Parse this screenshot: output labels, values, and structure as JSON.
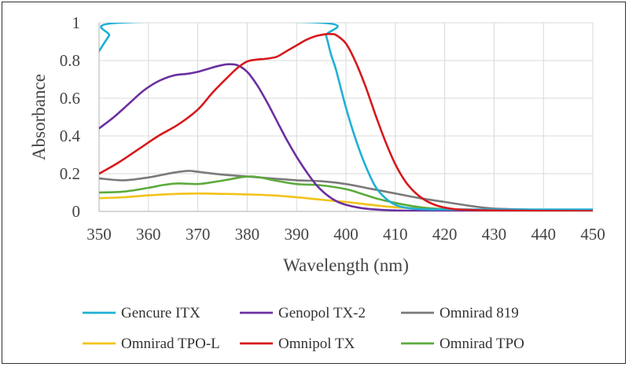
{
  "chart_data": {
    "type": "line",
    "title": "",
    "xlabel": "Wavelength (nm)",
    "ylabel": "Absorbance",
    "xlim": [
      350,
      450
    ],
    "ylim": [
      0,
      1
    ],
    "xticks": [
      350,
      360,
      370,
      380,
      390,
      400,
      410,
      420,
      430,
      440,
      450
    ],
    "yticks": [
      0,
      0.2,
      0.4,
      0.6,
      0.8,
      1
    ],
    "ytick_labels": [
      "0",
      "0.2",
      "0.4",
      "0.6",
      "0.8",
      "1"
    ],
    "grid": true,
    "legend_position": "bottom",
    "series": [
      {
        "name": "Gencure ITX",
        "color": "#1fb0d6",
        "x": [
          350,
          352,
          354,
          395,
          396,
          397,
          398,
          400,
          402,
          404,
          406,
          408,
          410,
          412,
          415,
          420,
          430,
          450
        ],
        "y": [
          0.85,
          0.93,
          1.0,
          1.0,
          0.93,
          0.83,
          0.75,
          0.55,
          0.38,
          0.24,
          0.13,
          0.07,
          0.035,
          0.02,
          0.012,
          0.01,
          0.01,
          0.01
        ]
      },
      {
        "name": "Genopol TX-2",
        "color": "#6b2fa0",
        "x": [
          350,
          353,
          356,
          359,
          362,
          365,
          368,
          370,
          372,
          374,
          376,
          378,
          380,
          382,
          384,
          386,
          388,
          390,
          392,
          394,
          396,
          398,
          400,
          403,
          406,
          410,
          415,
          420,
          430,
          450
        ],
        "y": [
          0.44,
          0.5,
          0.57,
          0.64,
          0.69,
          0.72,
          0.73,
          0.74,
          0.755,
          0.77,
          0.78,
          0.775,
          0.74,
          0.67,
          0.58,
          0.48,
          0.38,
          0.29,
          0.21,
          0.14,
          0.09,
          0.055,
          0.035,
          0.018,
          0.01,
          0.005,
          0.003,
          0.002,
          0.001,
          0.0
        ]
      },
      {
        "name": "Omnirad 819",
        "color": "#7a7a7a",
        "x": [
          350,
          355,
          360,
          365,
          368,
          370,
          375,
          380,
          385,
          390,
          395,
          400,
          405,
          410,
          415,
          420,
          425,
          430,
          440,
          450
        ],
        "y": [
          0.175,
          0.165,
          0.18,
          0.205,
          0.215,
          0.21,
          0.195,
          0.185,
          0.175,
          0.165,
          0.16,
          0.145,
          0.12,
          0.095,
          0.07,
          0.05,
          0.03,
          0.015,
          0.008,
          0.005
        ]
      },
      {
        "name": "Omnirad TPO-L",
        "color": "#f2c318",
        "x": [
          350,
          355,
          360,
          365,
          370,
          375,
          380,
          385,
          390,
          395,
          400,
          405,
          410,
          420,
          430,
          440,
          450
        ],
        "y": [
          0.07,
          0.075,
          0.085,
          0.092,
          0.095,
          0.093,
          0.09,
          0.085,
          0.075,
          0.062,
          0.05,
          0.035,
          0.022,
          0.01,
          0.006,
          0.004,
          0.003
        ]
      },
      {
        "name": "Omnipol TX",
        "color": "#d7191c",
        "x": [
          350,
          354,
          358,
          362,
          366,
          370,
          373,
          376,
          378,
          380,
          382,
          384,
          386,
          388,
          390,
          392,
          394,
          396,
          397,
          398,
          400,
          402,
          404,
          406,
          408,
          410,
          412,
          414,
          416,
          418,
          420,
          422,
          425,
          430,
          440,
          450
        ],
        "y": [
          0.2,
          0.26,
          0.33,
          0.4,
          0.46,
          0.54,
          0.63,
          0.71,
          0.76,
          0.795,
          0.805,
          0.81,
          0.82,
          0.85,
          0.88,
          0.91,
          0.93,
          0.94,
          0.94,
          0.935,
          0.89,
          0.79,
          0.66,
          0.51,
          0.37,
          0.25,
          0.16,
          0.1,
          0.06,
          0.035,
          0.02,
          0.012,
          0.008,
          0.005,
          0.003,
          0.002
        ]
      },
      {
        "name": "Omnirad TPO",
        "color": "#5cab3c",
        "x": [
          350,
          355,
          360,
          363,
          366,
          370,
          373,
          376,
          379,
          381,
          383,
          386,
          390,
          395,
          400,
          403,
          406,
          410,
          415,
          420,
          430,
          440,
          450
        ],
        "y": [
          0.1,
          0.105,
          0.125,
          0.14,
          0.148,
          0.145,
          0.155,
          0.168,
          0.182,
          0.185,
          0.178,
          0.162,
          0.145,
          0.138,
          0.118,
          0.095,
          0.07,
          0.045,
          0.022,
          0.012,
          0.008,
          0.006,
          0.005
        ]
      }
    ]
  }
}
